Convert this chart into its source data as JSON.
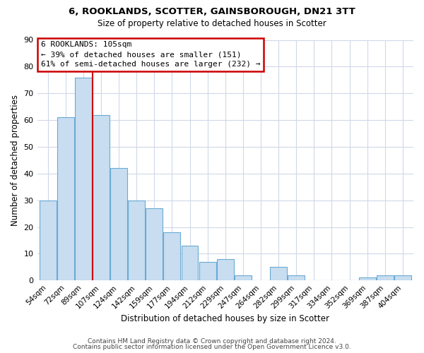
{
  "title": "6, ROOKLANDS, SCOTTER, GAINSBOROUGH, DN21 3TT",
  "subtitle": "Size of property relative to detached houses in Scotter",
  "xlabel": "Distribution of detached houses by size in Scotter",
  "ylabel": "Number of detached properties",
  "bar_color": "#c8ddf0",
  "bar_edge_color": "#6aaad4",
  "marker_line_color": "#cc0000",
  "categories": [
    "54sqm",
    "72sqm",
    "89sqm",
    "107sqm",
    "124sqm",
    "142sqm",
    "159sqm",
    "177sqm",
    "194sqm",
    "212sqm",
    "229sqm",
    "247sqm",
    "264sqm",
    "282sqm",
    "299sqm",
    "317sqm",
    "334sqm",
    "352sqm",
    "369sqm",
    "387sqm",
    "404sqm"
  ],
  "values": [
    30,
    61,
    76,
    62,
    42,
    30,
    27,
    18,
    13,
    7,
    8,
    2,
    0,
    5,
    2,
    0,
    0,
    0,
    1,
    2,
    2
  ],
  "ylim": [
    0,
    90
  ],
  "yticks": [
    0,
    10,
    20,
    30,
    40,
    50,
    60,
    70,
    80,
    90
  ],
  "annotation_title": "6 ROOKLANDS: 105sqm",
  "annotation_line1": "← 39% of detached houses are smaller (151)",
  "annotation_line2": "61% of semi-detached houses are larger (232) →",
  "annotation_box_color": "#ffffff",
  "annotation_box_edge": "#cc0000",
  "footer_line1": "Contains HM Land Registry data © Crown copyright and database right 2024.",
  "footer_line2": "Contains public sector information licensed under the Open Government Licence v3.0.",
  "background_color": "#ffffff",
  "grid_color": "#d0d8e8",
  "marker_bin_index": 3
}
